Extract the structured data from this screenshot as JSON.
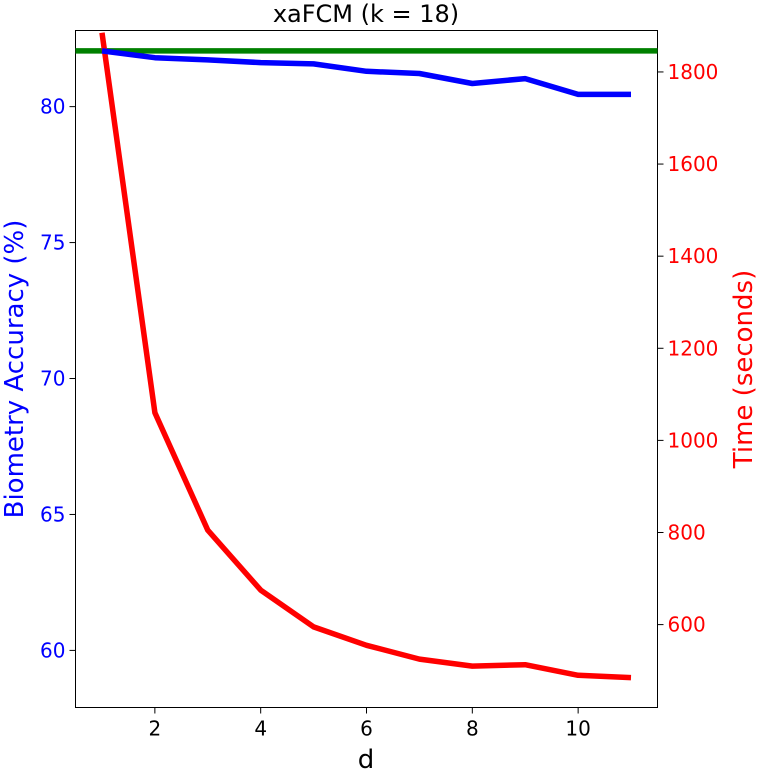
{
  "chart_data": {
    "type": "line",
    "title": "xaFCM (k = 18)",
    "xlabel": "d",
    "ylabel_left": "Biometry Accuracy (%)",
    "ylabel_right": "Time (seconds)",
    "x": [
      1,
      2,
      3,
      4,
      5,
      6,
      7,
      8,
      9,
      10,
      11
    ],
    "xlim": [
      0.5,
      11.5
    ],
    "ylim_left": [
      57.9,
      82.8
    ],
    "ylim_right": [
      420,
      1890
    ],
    "xticks": [
      "2",
      "4",
      "6",
      "8",
      "10"
    ],
    "yticks_left": [
      "60",
      "65",
      "70",
      "75",
      "80"
    ],
    "yticks_right": [
      "600",
      "800",
      "1000",
      "1200",
      "1400",
      "1600",
      "1800"
    ],
    "series": [
      {
        "axis": "left",
        "color": "#0000ff",
        "values": [
          82.05,
          81.8,
          81.72,
          81.62,
          81.57,
          81.3,
          81.22,
          80.85,
          81.03,
          80.45,
          80.45
        ]
      },
      {
        "axis": "right",
        "color": "#ff0000",
        "values": [
          1885,
          1060,
          805,
          675,
          595,
          555,
          525,
          510,
          513,
          490,
          485
        ]
      }
    ],
    "reference_line": {
      "axis": "left",
      "value": 82.05,
      "color": "#008000"
    }
  }
}
